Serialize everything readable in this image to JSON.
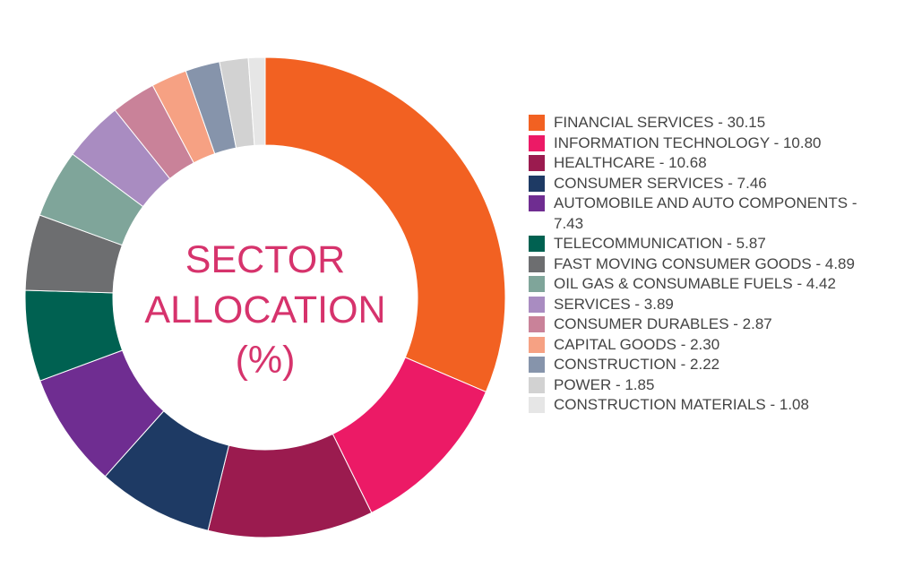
{
  "chart_data": {
    "type": "donut",
    "title": "SECTOR ALLOCATION (%)",
    "categories": [
      "FINANCIAL SERVICES - 30.15",
      "INFORMATION TECHNOLOGY - 10.80",
      "HEALTHCARE - 10.68",
      "CONSUMER SERVICES - 7.46",
      "AUTOMOBILE AND AUTO COMPONENTS - 7.43",
      "TELECOMMUNICATION - 5.87",
      "FAST MOVING CONSUMER GOODS - 4.89",
      "OIL GAS & CONSUMABLE FUELS - 4.42",
      "SERVICES - 3.89",
      "CONSUMER DURABLES - 2.87",
      "CAPITAL GOODS - 2.30",
      "CONSTRUCTION - 2.22",
      "POWER - 1.85",
      "CONSTRUCTION MATERIALS - 1.08"
    ],
    "values": [
      30.15,
      10.8,
      10.68,
      7.46,
      7.43,
      5.87,
      4.89,
      4.42,
      3.89,
      2.87,
      2.3,
      2.22,
      1.85,
      1.08
    ],
    "colors": [
      "#f26122",
      "#ec1a66",
      "#9b1b4f",
      "#1e3a64",
      "#6f2d91",
      "#006151",
      "#6d6e70",
      "#7fa59a",
      "#a98cc1",
      "#c98299",
      "#f6a183",
      "#8694ab",
      "#d2d2d2",
      "#e6e6e6"
    ]
  }
}
